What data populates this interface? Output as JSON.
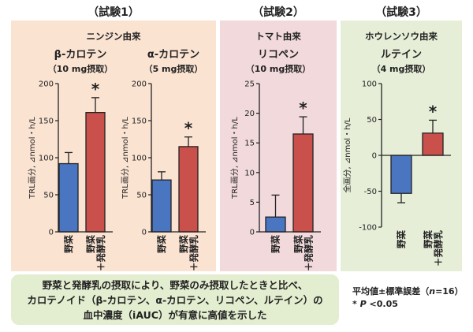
{
  "trials": [
    {
      "label": "（試験1）",
      "group_label": "ニンジン由来",
      "charts": [
        {
          "title": "β-カロテン",
          "dose": "（10 mg摂取）"
        },
        {
          "title": "α-カロテン",
          "dose": "（5 mg摂取）"
        }
      ]
    },
    {
      "label": "（試験2）",
      "group_label": "トマト由来",
      "charts": [
        {
          "title": "リコペン",
          "dose": "（10 mg摂取）"
        }
      ]
    },
    {
      "label": "（試験3）",
      "group_label": "ホウレンソウ由来",
      "charts": [
        {
          "title": "ルテイン",
          "dose": "（4 mg摂取）"
        }
      ]
    }
  ],
  "categories": [
    "野菜",
    "野菜\n＋発酵乳"
  ],
  "colors": {
    "vegetable": "#4a76c1",
    "fermented_milk": "#c9504b",
    "trial1_bg": "#fbe3d2",
    "trial2_bg": "#f1d9dc",
    "trial3_bg": "#e7eed8",
    "note_bg": "#e3edcf"
  },
  "chart_data": [
    {
      "type": "bar",
      "title": "β-カロテン",
      "ylabel": "TRL画分, ⊿nmol・h/L",
      "ylim": [
        0,
        200
      ],
      "yticks": [
        0,
        50,
        100,
        150,
        200
      ],
      "categories": [
        "野菜",
        "野菜＋発酵乳"
      ],
      "values": [
        92,
        161
      ],
      "errors": [
        15,
        20
      ],
      "significance": [
        false,
        true
      ]
    },
    {
      "type": "bar",
      "title": "α-カロテン",
      "ylabel": "TRL画分, ⊿nmol・h/L",
      "ylim": [
        0,
        200
      ],
      "yticks": [
        0,
        50,
        100,
        150,
        200
      ],
      "categories": [
        "野菜",
        "野菜＋発酵乳"
      ],
      "values": [
        70,
        115
      ],
      "errors": [
        11,
        13
      ],
      "significance": [
        false,
        true
      ]
    },
    {
      "type": "bar",
      "title": "リコペン",
      "ylabel": "TRL画分, ⊿nmol・h/L",
      "ylim": [
        0,
        25
      ],
      "yticks": [
        0,
        5,
        10,
        15,
        20,
        25
      ],
      "categories": [
        "野菜",
        "野菜＋発酵乳"
      ],
      "values": [
        2.5,
        16.5
      ],
      "errors": [
        3.7,
        2.9
      ],
      "significance": [
        false,
        true
      ]
    },
    {
      "type": "bar",
      "title": "ルテイン",
      "ylabel": "全画分, ⊿nmol・h/L",
      "ylim": [
        -100,
        100
      ],
      "yticks": [
        -100,
        -50,
        0,
        50,
        100
      ],
      "categories": [
        "野菜",
        "野菜＋発酵乳"
      ],
      "values": [
        -53,
        31
      ],
      "errors": [
        13,
        18
      ],
      "significance": [
        false,
        true
      ]
    }
  ],
  "significance_mark": "*",
  "note": {
    "lines": [
      "野菜と発酵乳の摂取により、野菜のみ摂取したときと比べ、",
      "カロテノイド（β-カロテン、α-カロテン、リコペン、ルテイン）の",
      "血中濃度（iAUC）が有意に高値を示した"
    ]
  },
  "legend": {
    "mean_sem": "平均値±標準誤差（",
    "n_symbol": "n",
    "n_value": "=16）",
    "p_star": "*",
    "p_symbol": "P",
    "p_value": "<0.05"
  }
}
